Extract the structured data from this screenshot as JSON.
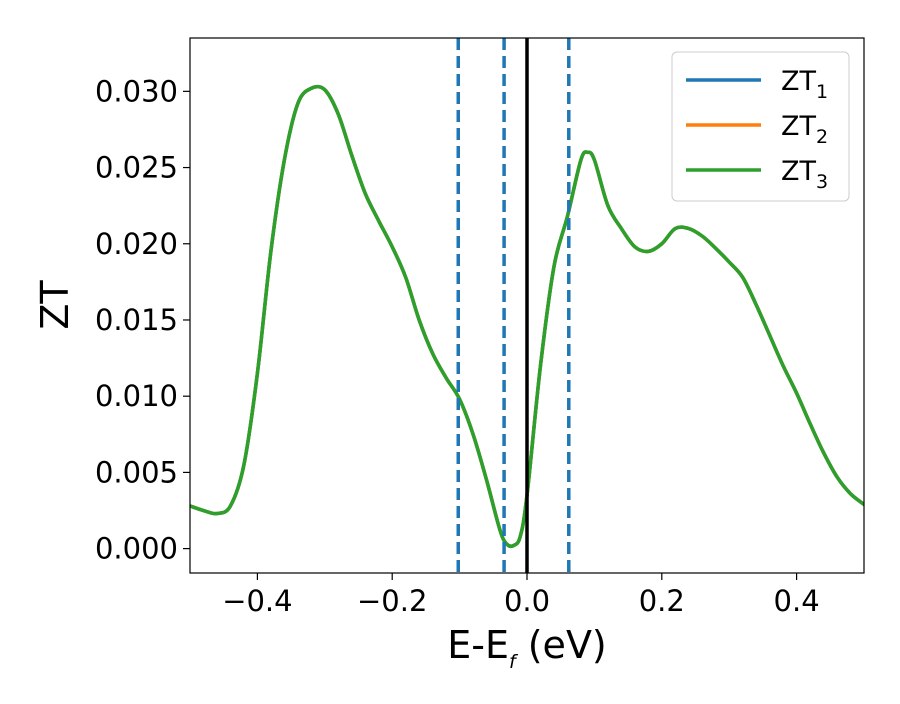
{
  "chart_data": {
    "type": "line",
    "title": "",
    "xlabel": "E-E",
    "xlabel_sub": "f",
    "xlabel_unit": " (eV)",
    "ylabel": "ZT",
    "xlim": [
      -0.5,
      0.5
    ],
    "ylim": [
      -0.0016,
      0.0335
    ],
    "x_ticks": [
      -0.4,
      -0.2,
      0.0,
      0.2,
      0.4
    ],
    "x_tick_labels": [
      "−0.4",
      "−0.2",
      "0.0",
      "0.2",
      "0.4"
    ],
    "y_ticks": [
      0.0,
      0.005,
      0.01,
      0.015,
      0.02,
      0.025,
      0.03
    ],
    "y_tick_labels": [
      "0.000",
      "0.005",
      "0.010",
      "0.015",
      "0.020",
      "0.025",
      "0.030"
    ],
    "grid": false,
    "legend_position": "top-right",
    "x": [
      -0.5,
      -0.48,
      -0.46,
      -0.44,
      -0.42,
      -0.4,
      -0.38,
      -0.36,
      -0.34,
      -0.32,
      -0.3,
      -0.28,
      -0.26,
      -0.24,
      -0.22,
      -0.2,
      -0.18,
      -0.16,
      -0.14,
      -0.12,
      -0.1,
      -0.08,
      -0.06,
      -0.04,
      -0.03,
      -0.02,
      -0.01,
      0.0,
      0.02,
      0.04,
      0.06,
      0.08,
      0.09,
      0.1,
      0.12,
      0.14,
      0.16,
      0.18,
      0.2,
      0.22,
      0.24,
      0.26,
      0.28,
      0.3,
      0.32,
      0.34,
      0.36,
      0.38,
      0.4,
      0.42,
      0.44,
      0.46,
      0.48,
      0.5
    ],
    "series": [
      {
        "name": "ZT",
        "name_sub": "1",
        "color": "#1f77b4",
        "values": [
          0.0028,
          0.0025,
          0.0023,
          0.0028,
          0.0055,
          0.0115,
          0.0195,
          0.0255,
          0.0292,
          0.0302,
          0.0301,
          0.0285,
          0.0258,
          0.0233,
          0.0215,
          0.0198,
          0.0178,
          0.015,
          0.0128,
          0.0112,
          0.0098,
          0.0075,
          0.0045,
          0.0012,
          0.0003,
          0.0002,
          0.0008,
          0.0035,
          0.012,
          0.0185,
          0.0218,
          0.0255,
          0.026,
          0.0255,
          0.0225,
          0.021,
          0.0198,
          0.0195,
          0.02,
          0.021,
          0.021,
          0.0205,
          0.0197,
          0.0188,
          0.0178,
          0.016,
          0.014,
          0.012,
          0.0102,
          0.0082,
          0.0063,
          0.0047,
          0.0036,
          0.0029
        ]
      },
      {
        "name": "ZT",
        "name_sub": "2",
        "color": "#ff7f0e",
        "values": [
          0.0028,
          0.0025,
          0.0023,
          0.0028,
          0.0055,
          0.0115,
          0.0195,
          0.0255,
          0.0292,
          0.0302,
          0.0301,
          0.0285,
          0.0258,
          0.0233,
          0.0215,
          0.0198,
          0.0178,
          0.015,
          0.0128,
          0.0112,
          0.0098,
          0.0075,
          0.0045,
          0.0012,
          0.0003,
          0.0002,
          0.0008,
          0.0035,
          0.012,
          0.0185,
          0.0218,
          0.0255,
          0.026,
          0.0255,
          0.0225,
          0.021,
          0.0198,
          0.0195,
          0.02,
          0.021,
          0.021,
          0.0205,
          0.0197,
          0.0188,
          0.0178,
          0.016,
          0.014,
          0.012,
          0.0102,
          0.0082,
          0.0063,
          0.0047,
          0.0036,
          0.0029
        ]
      },
      {
        "name": "ZT",
        "name_sub": "3",
        "color": "#2ca02c",
        "values": [
          0.0028,
          0.0025,
          0.0023,
          0.0028,
          0.0055,
          0.0115,
          0.0195,
          0.0255,
          0.0292,
          0.0302,
          0.0301,
          0.0285,
          0.0258,
          0.0233,
          0.0215,
          0.0198,
          0.0178,
          0.015,
          0.0128,
          0.0112,
          0.0098,
          0.0075,
          0.0045,
          0.0012,
          0.0003,
          0.0002,
          0.0008,
          0.0035,
          0.012,
          0.0185,
          0.0218,
          0.0255,
          0.026,
          0.0255,
          0.0225,
          0.021,
          0.0198,
          0.0195,
          0.02,
          0.021,
          0.021,
          0.0205,
          0.0197,
          0.0188,
          0.0178,
          0.016,
          0.014,
          0.012,
          0.0102,
          0.0082,
          0.0063,
          0.0047,
          0.0036,
          0.0029
        ]
      }
    ],
    "vertical_lines": [
      {
        "x": -0.102,
        "style": "dashed",
        "color": "#1f77b4"
      },
      {
        "x": -0.034,
        "style": "dashed",
        "color": "#1f77b4"
      },
      {
        "x": 0.0,
        "style": "solid",
        "color": "#000000"
      },
      {
        "x": 0.062,
        "style": "dashed",
        "color": "#1f77b4"
      }
    ]
  }
}
